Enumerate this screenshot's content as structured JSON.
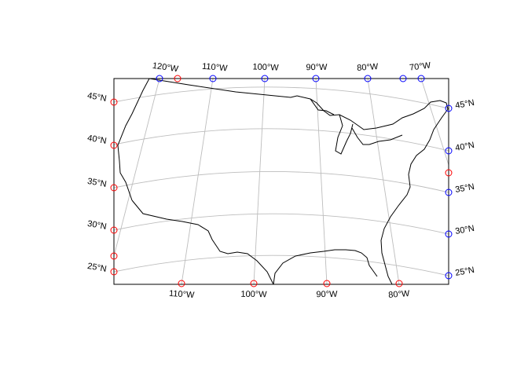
{
  "map": {
    "projection": "conic (Lambert-style) over the contiguous United States",
    "graticule_color": "#bdbdbd",
    "coastline_color": "#000000",
    "marker_colors": {
      "top_right": "#0000ff",
      "bottom_left": "#ff0000"
    },
    "top_lon_labels": [
      "120°W",
      "110°W",
      "100°W",
      "90°W",
      "80°W",
      "70°W"
    ],
    "bottom_lon_labels": [
      "110°W",
      "100°W",
      "90°W",
      "80°W"
    ],
    "left_lat_labels": [
      "45°N",
      "40°N",
      "35°N",
      "30°N",
      "25°N"
    ],
    "right_lat_labels": [
      "45°N",
      "40°N",
      "35°N",
      "30°N",
      "25°N"
    ]
  }
}
